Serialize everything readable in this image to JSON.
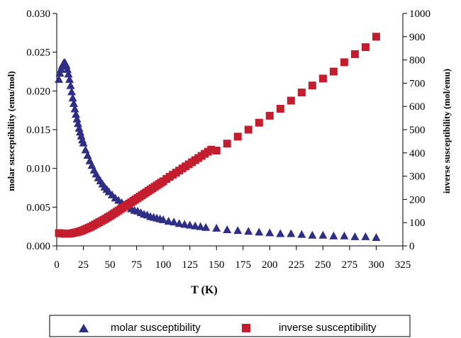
{
  "chart_data": {
    "type": "scatter",
    "title": "",
    "xlabel": "T (K)",
    "ylabel_left": "molar susceptibility (emu/mol)",
    "ylabel_right": "inverse susceptibility (mol/emu)",
    "xlim": [
      0,
      325
    ],
    "xticks": [
      "0",
      "25",
      "50",
      "75",
      "100",
      "125",
      "150",
      "175",
      "200",
      "225",
      "250",
      "275",
      "300",
      "325"
    ],
    "ylim_left": [
      0,
      0.03
    ],
    "yticks_left": [
      "0.000",
      "0.005",
      "0.010",
      "0.015",
      "0.020",
      "0.025",
      "0.030"
    ],
    "ylim_right": [
      0,
      1000
    ],
    "yticks_right": [
      "0",
      "100",
      "200",
      "300",
      "400",
      "500",
      "600",
      "700",
      "800",
      "900",
      "1000"
    ],
    "grid": false,
    "legend_position": "bottom",
    "series": [
      {
        "name": "molar susceptibility",
        "axis": "left",
        "marker": "triangle",
        "color": "#2e2e85",
        "x": [
          2,
          3,
          4,
          5,
          6,
          7,
          8,
          9,
          10,
          11,
          12,
          13,
          14,
          15,
          16,
          17,
          18,
          19,
          20,
          21,
          22,
          23,
          24,
          25,
          27,
          29,
          31,
          33,
          35,
          37,
          39,
          41,
          43,
          45,
          47,
          49,
          52,
          55,
          58,
          61,
          64,
          67,
          70,
          73,
          76,
          79,
          82,
          85,
          88,
          91,
          94,
          97,
          100,
          105,
          110,
          115,
          120,
          125,
          130,
          135,
          140,
          150,
          160,
          170,
          180,
          190,
          200,
          210,
          220,
          230,
          240,
          250,
          260,
          270,
          280,
          290,
          300
        ],
        "y": [
          0.0215,
          0.0223,
          0.0228,
          0.0232,
          0.0235,
          0.0237,
          0.0236,
          0.0233,
          0.0228,
          0.0222,
          0.0215,
          0.0207,
          0.0199,
          0.0191,
          0.0184,
          0.0177,
          0.017,
          0.0164,
          0.0158,
          0.0152,
          0.0147,
          0.0142,
          0.0137,
          0.0133,
          0.0124,
          0.0117,
          0.011,
          0.0104,
          0.0098,
          0.0093,
          0.0088,
          0.0084,
          0.008,
          0.0076,
          0.0073,
          0.007,
          0.0066,
          0.0062,
          0.0059,
          0.0056,
          0.0053,
          0.0051,
          0.0048,
          0.0046,
          0.0045,
          0.0043,
          0.0041,
          0.004,
          0.0038,
          0.0037,
          0.0036,
          0.0035,
          0.0034,
          0.0032,
          0.0031,
          0.0029,
          0.0028,
          0.0027,
          0.0026,
          0.0025,
          0.0024,
          0.0023,
          0.0021,
          0.002,
          0.0019,
          0.0018,
          0.0017,
          0.0016,
          0.0016,
          0.0015,
          0.0014,
          0.0014,
          0.0013,
          0.0013,
          0.0012,
          0.0012,
          0.0011
        ]
      },
      {
        "name": "inverse susceptibility",
        "axis": "right",
        "marker": "square",
        "color": "#c41e2e",
        "x": [
          2,
          4,
          6,
          8,
          10,
          12,
          14,
          16,
          18,
          20,
          22,
          24,
          26,
          28,
          30,
          32,
          34,
          36,
          38,
          40,
          42,
          44,
          46,
          48,
          50,
          52,
          54,
          56,
          58,
          60,
          62,
          64,
          66,
          68,
          70,
          72,
          74,
          76,
          78,
          80,
          82,
          84,
          86,
          88,
          90,
          92,
          94,
          96,
          98,
          100,
          103,
          106,
          109,
          112,
          115,
          118,
          121,
          124,
          127,
          130,
          133,
          136,
          139,
          142,
          145,
          150,
          160,
          170,
          180,
          190,
          200,
          210,
          220,
          230,
          240,
          250,
          260,
          270,
          280,
          290,
          300
        ],
        "y": [
          55,
          54,
          53,
          52,
          52,
          53,
          54,
          56,
          58,
          60,
          63,
          66,
          70,
          74,
          78,
          82,
          87,
          92,
          97,
          102,
          107,
          112,
          117,
          123,
          128,
          134,
          140,
          146,
          152,
          158,
          164,
          170,
          176,
          182,
          188,
          194,
          200,
          206,
          212,
          218,
          224,
          230,
          236,
          242,
          248,
          254,
          260,
          266,
          272,
          278,
          288,
          297,
          306,
          315,
          324,
          333,
          342,
          351,
          360,
          369,
          378,
          387,
          396,
          405,
          414,
          410,
          440,
          470,
          500,
          530,
          560,
          590,
          625,
          660,
          690,
          720,
          750,
          790,
          825,
          855,
          900
        ]
      }
    ]
  }
}
